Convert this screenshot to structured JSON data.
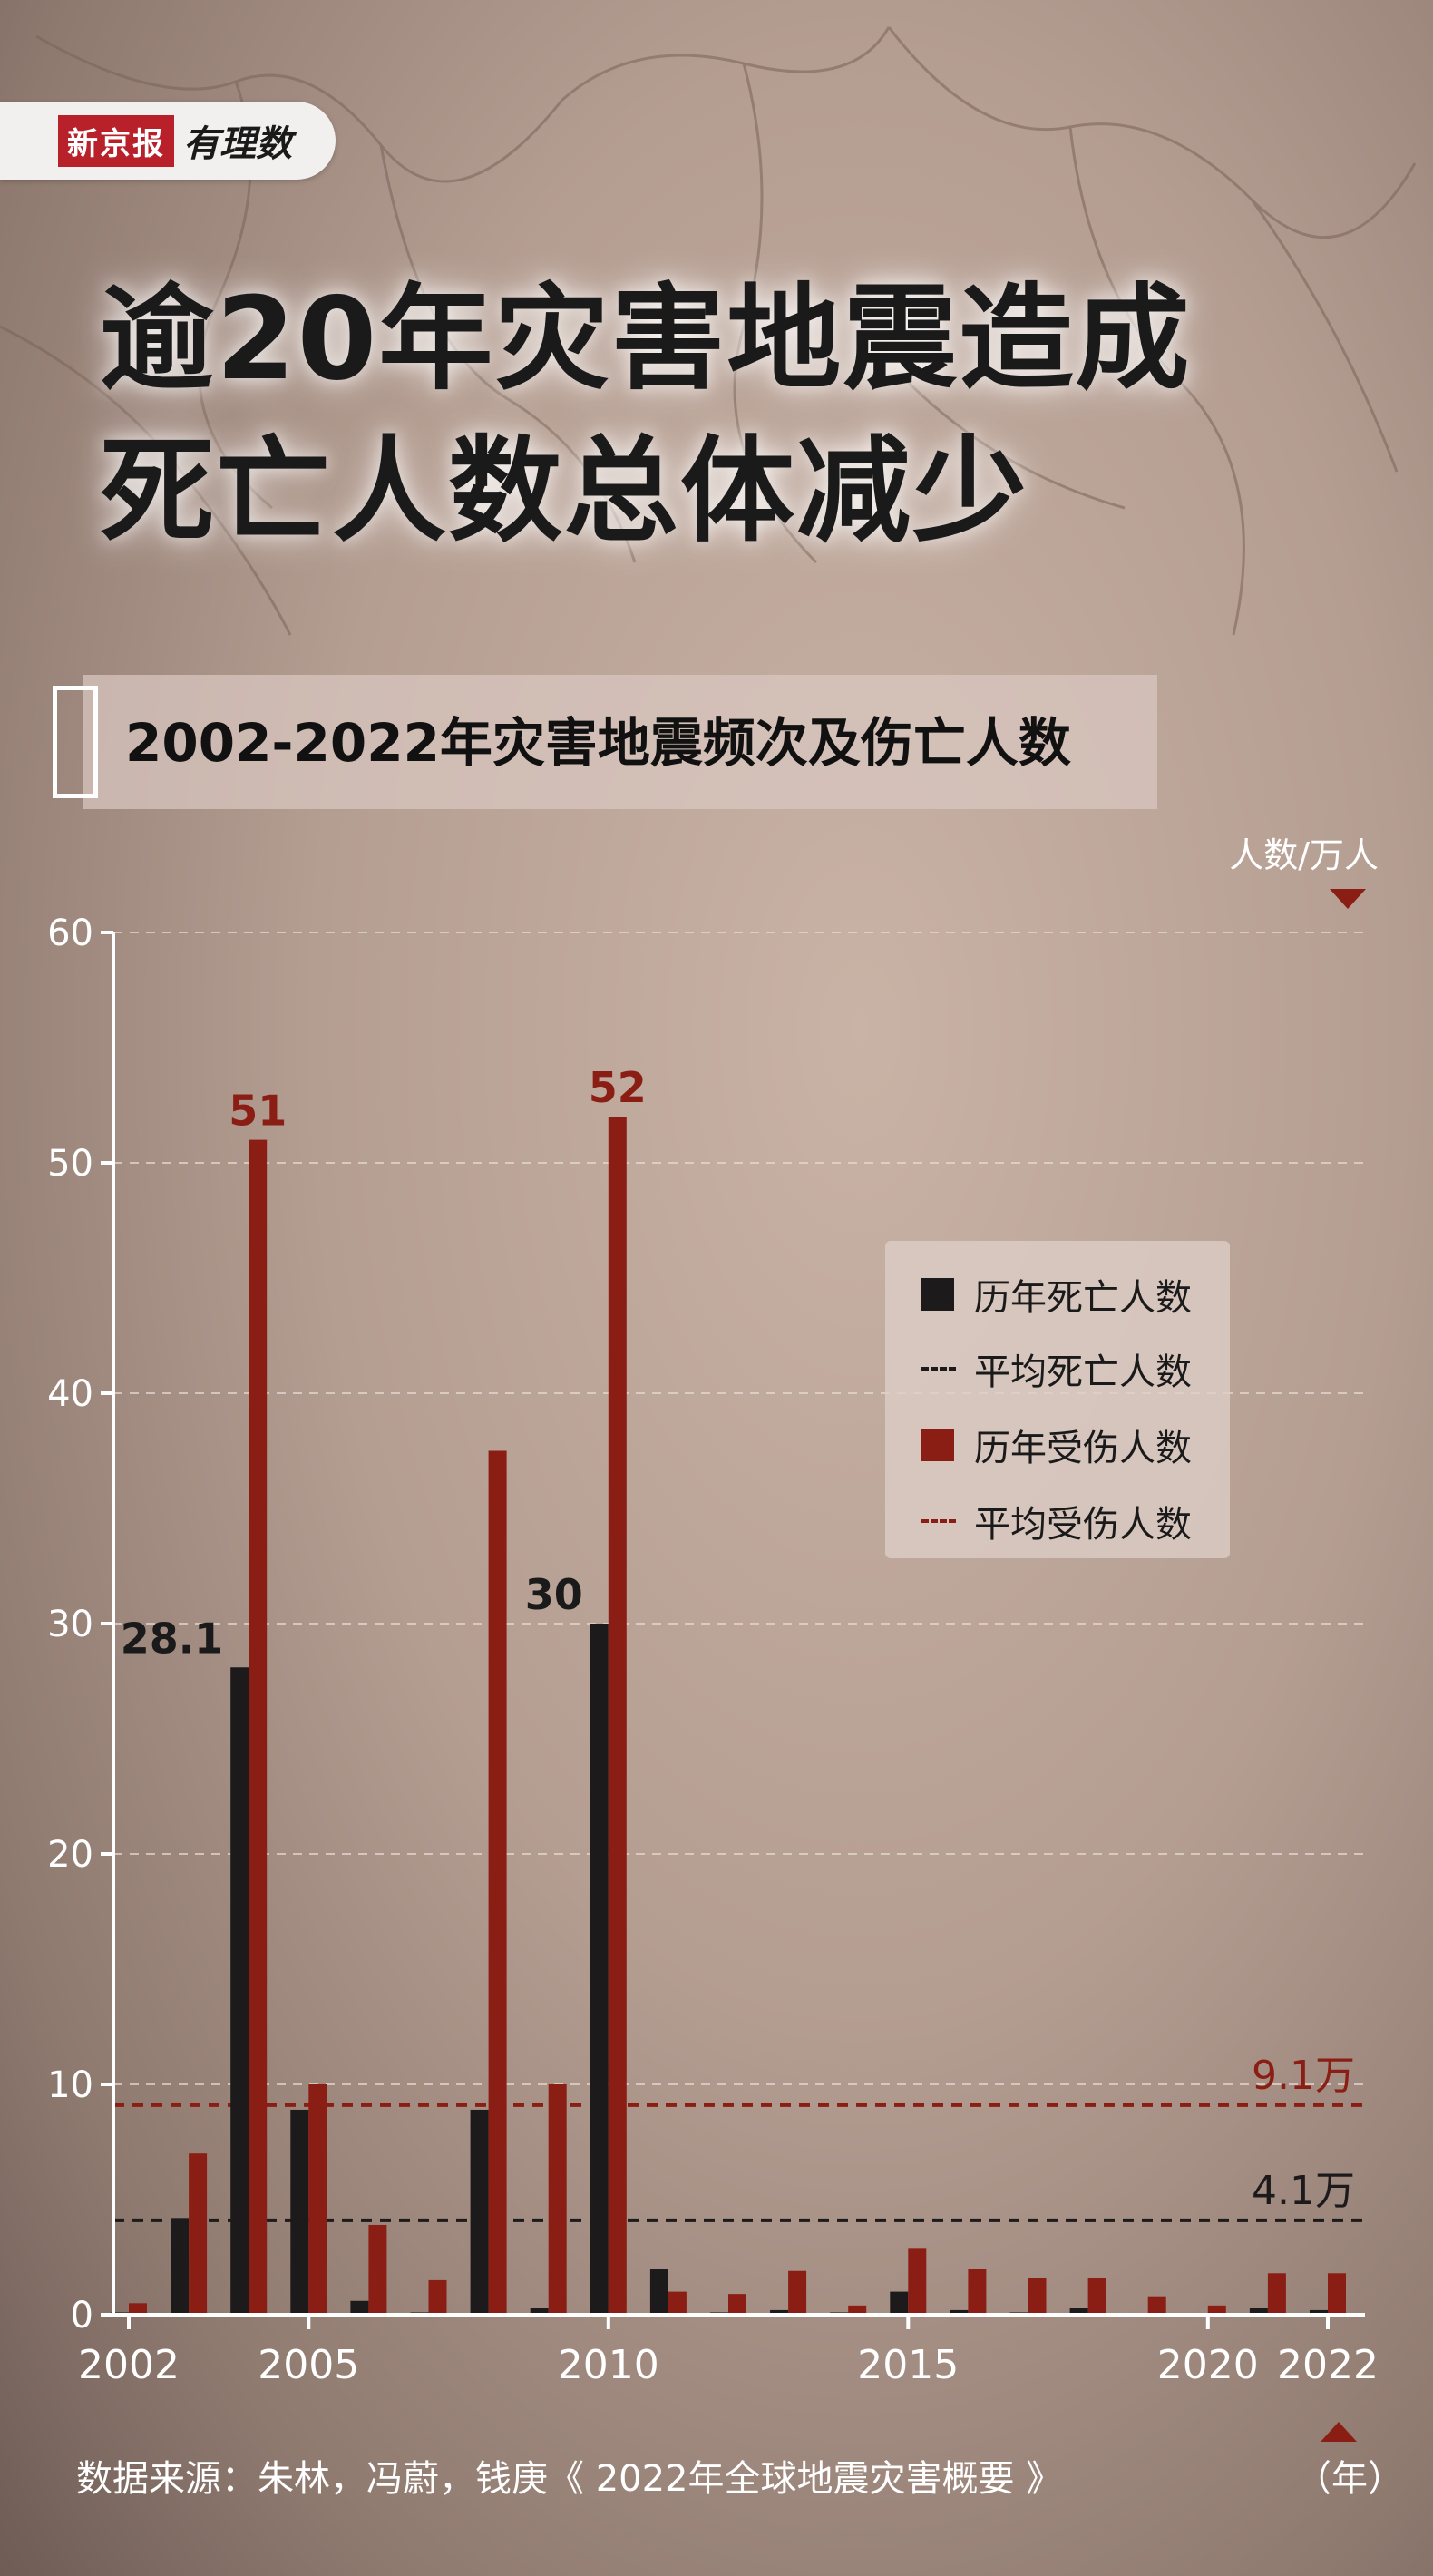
{
  "brand": {
    "name": "新京报",
    "column": "有理数"
  },
  "title": {
    "line1": "逾20年灾害地震造成",
    "line2": "死亡人数总体减少"
  },
  "subtitle": "2002-2022年灾害地震频次及伤亡人数",
  "unit_label": "人数/万人",
  "year_unit": "（年）",
  "source": "数据来源：朱林，冯蔚，钱庚《 2022年全球地震灾害概要 》",
  "colors": {
    "deaths": "#1c1a1a",
    "injuries": "#8b1e14",
    "axis": "#ffffff",
    "grid": "#e8dcd6"
  },
  "legend": {
    "deaths": "历年死亡人数",
    "avg_deaths": "平均死亡人数",
    "injuries": "历年受伤人数",
    "avg_injuries": "平均受伤人数"
  },
  "chart_data": {
    "type": "bar",
    "x": [
      2002,
      2003,
      2004,
      2005,
      2006,
      2007,
      2008,
      2009,
      2010,
      2011,
      2012,
      2013,
      2014,
      2015,
      2016,
      2017,
      2018,
      2019,
      2020,
      2021,
      2022
    ],
    "x_ticks": [
      "2002",
      "2005",
      "2010",
      "2015",
      "2020",
      "2022"
    ],
    "series": [
      {
        "name": "历年死亡人数",
        "values": [
          0.1,
          4.2,
          28.1,
          8.9,
          0.6,
          0.1,
          8.9,
          0.3,
          30,
          2.0,
          0.1,
          0.2,
          0.1,
          1.0,
          0.2,
          0.1,
          0.3,
          0.05,
          0.02,
          0.3,
          0.2
        ]
      },
      {
        "name": "历年受伤人数",
        "values": [
          0.5,
          7.0,
          51,
          10.0,
          3.9,
          1.5,
          37.5,
          10.0,
          52,
          1.0,
          0.9,
          1.9,
          0.4,
          2.9,
          2.0,
          1.6,
          1.6,
          0.8,
          0.4,
          1.8,
          1.8
        ]
      }
    ],
    "averages": [
      {
        "name": "平均死亡人数",
        "value": 4.1,
        "label": "4.1万"
      },
      {
        "name": "平均受伤人数",
        "value": 9.1,
        "label": "9.1万"
      }
    ],
    "data_labels": [
      {
        "series": "历年受伤人数",
        "x": 2004,
        "text": "51"
      },
      {
        "series": "历年受伤人数",
        "x": 2010,
        "text": "52"
      },
      {
        "series": "历年死亡人数",
        "x": 2004,
        "text": "28.1"
      },
      {
        "series": "历年死亡人数",
        "x": 2010,
        "text": "30"
      }
    ],
    "y_ticks": [
      0,
      10,
      20,
      30,
      40,
      50,
      60
    ],
    "ylim": [
      0,
      60
    ],
    "xlabel": "（年）",
    "ylabel": "人数/万人",
    "grid": true,
    "legend_position": "right"
  }
}
